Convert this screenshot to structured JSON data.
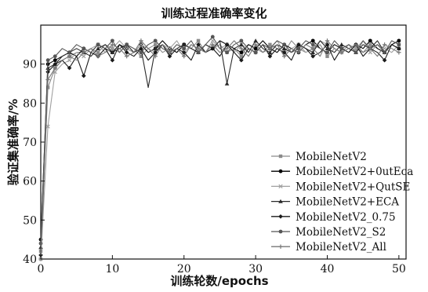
{
  "chart_data": {
    "type": "line",
    "title": "训练过程准确率变化",
    "xlabel": "训练轮数/epochs",
    "ylabel": "验证集准确率/%",
    "xlim": [
      0,
      51
    ],
    "ylim": [
      40,
      100
    ],
    "xticks": [
      0,
      10,
      20,
      30,
      40,
      50
    ],
    "yticks": [
      40,
      50,
      60,
      70,
      80,
      90
    ],
    "grid": false,
    "legend_position": "bottom-right",
    "series": [
      {
        "name": "MobileNetV2",
        "color": "#8a8a8a",
        "marker": "square",
        "x": [
          0,
          1,
          2,
          3,
          4,
          5,
          6,
          7,
          8,
          9,
          10,
          11,
          12,
          13,
          14,
          15,
          16,
          17,
          18,
          19,
          20,
          21,
          22,
          23,
          24,
          25,
          26,
          27,
          28,
          29,
          30,
          31,
          32,
          33,
          34,
          35,
          36,
          37,
          38,
          39,
          40,
          41,
          42,
          43,
          44,
          45,
          46,
          47,
          48,
          49,
          50
        ],
        "values": [
          42,
          84,
          89,
          91,
          92,
          93,
          93,
          94,
          93,
          95,
          94,
          93,
          95,
          94,
          92,
          94,
          95,
          93,
          94,
          93,
          95,
          94,
          96,
          93,
          94,
          95,
          93,
          94,
          92,
          95,
          94,
          93,
          95,
          94,
          93,
          96,
          94,
          93,
          94,
          95,
          92,
          94,
          93,
          95,
          94,
          93,
          95,
          94,
          93,
          95,
          94
        ]
      },
      {
        "name": "MobileNetV2+0utEca",
        "color": "#000000",
        "marker": "circle",
        "x": [
          0,
          1,
          2,
          3,
          4,
          5,
          6,
          7,
          8,
          9,
          10,
          11,
          12,
          13,
          14,
          15,
          16,
          17,
          18,
          19,
          20,
          21,
          22,
          23,
          24,
          25,
          26,
          27,
          28,
          29,
          30,
          31,
          32,
          33,
          34,
          35,
          36,
          37,
          38,
          39,
          40,
          41,
          42,
          43,
          44,
          45,
          46,
          47,
          48,
          49,
          50
        ],
        "values": [
          45,
          90,
          91,
          92,
          93,
          92,
          94,
          93,
          95,
          94,
          93,
          95,
          94,
          93,
          95,
          93,
          94,
          96,
          94,
          93,
          95,
          94,
          93,
          95,
          94,
          96,
          95,
          94,
          93,
          95,
          94,
          96,
          94,
          93,
          95,
          94,
          93,
          95,
          96,
          94,
          93,
          95,
          94,
          93,
          95,
          94,
          96,
          94,
          93,
          95,
          96
        ]
      },
      {
        "name": "MobileNetV2+QutSE",
        "color": "#a0a0a0",
        "marker": "cross",
        "x": [
          0,
          1,
          2,
          3,
          4,
          5,
          6,
          7,
          8,
          9,
          10,
          11,
          12,
          13,
          14,
          15,
          16,
          17,
          18,
          19,
          20,
          21,
          22,
          23,
          24,
          25,
          26,
          27,
          28,
          29,
          30,
          31,
          32,
          33,
          34,
          35,
          36,
          37,
          38,
          39,
          40,
          41,
          42,
          43,
          44,
          45,
          46,
          47,
          48,
          49,
          50
        ],
        "values": [
          40,
          74,
          88,
          90,
          91,
          93,
          92,
          94,
          95,
          93,
          94,
          96,
          94,
          93,
          95,
          94,
          93,
          95,
          94,
          96,
          93,
          95,
          94,
          93,
          96,
          94,
          95,
          93,
          95,
          94,
          93,
          95,
          94,
          96,
          93,
          94,
          95,
          93,
          94,
          96,
          95,
          94,
          93,
          95,
          94,
          96,
          93,
          95,
          94,
          93,
          95
        ]
      },
      {
        "name": "MobileNetV2+ECA",
        "color": "#2a2a2a",
        "marker": "triangle",
        "x": [
          0,
          1,
          2,
          3,
          4,
          5,
          6,
          7,
          8,
          9,
          10,
          11,
          12,
          13,
          14,
          15,
          16,
          17,
          18,
          19,
          20,
          21,
          22,
          23,
          24,
          25,
          26,
          27,
          28,
          29,
          30,
          31,
          32,
          33,
          34,
          35,
          36,
          37,
          38,
          39,
          40,
          41,
          42,
          43,
          44,
          45,
          46,
          47,
          48,
          49,
          50
        ],
        "values": [
          43,
          89,
          90,
          92,
          93,
          94,
          93,
          92,
          94,
          95,
          93,
          94,
          95,
          93,
          94,
          84,
          94,
          95,
          93,
          94,
          95,
          94,
          93,
          95,
          94,
          96,
          85,
          94,
          95,
          93,
          96,
          94,
          93,
          95,
          94,
          93,
          95,
          94,
          93,
          96,
          94,
          93,
          95,
          94,
          93,
          95,
          94,
          96,
          93,
          95,
          94
        ]
      },
      {
        "name": "MobileNetV2_0.75",
        "color": "#1a1a1a",
        "marker": "diamond",
        "x": [
          0,
          1,
          2,
          3,
          4,
          5,
          6,
          7,
          8,
          9,
          10,
          11,
          12,
          13,
          14,
          15,
          16,
          17,
          18,
          19,
          20,
          21,
          22,
          23,
          24,
          25,
          26,
          27,
          28,
          29,
          30,
          31,
          32,
          33,
          34,
          35,
          36,
          37,
          38,
          39,
          40,
          41,
          42,
          43,
          44,
          45,
          46,
          47,
          48,
          49,
          50
        ],
        "values": [
          41,
          88,
          90,
          91,
          89,
          92,
          87,
          93,
          92,
          94,
          91,
          95,
          93,
          92,
          94,
          91,
          93,
          95,
          92,
          94,
          93,
          91,
          95,
          93,
          94,
          92,
          95,
          93,
          91,
          94,
          93,
          95,
          92,
          94,
          93,
          91,
          95,
          94,
          92,
          93,
          95,
          91,
          94,
          93,
          95,
          92,
          94,
          93,
          91,
          95,
          94
        ]
      },
      {
        "name": "MobileNetV2_S2",
        "color": "#555555",
        "marker": "circle",
        "x": [
          0,
          1,
          2,
          3,
          4,
          5,
          6,
          7,
          8,
          9,
          10,
          11,
          12,
          13,
          14,
          15,
          16,
          17,
          18,
          19,
          20,
          21,
          22,
          23,
          24,
          25,
          26,
          27,
          28,
          29,
          30,
          31,
          32,
          33,
          34,
          35,
          36,
          37,
          38,
          39,
          40,
          41,
          42,
          43,
          44,
          45,
          46,
          47,
          48,
          49,
          50
        ],
        "values": [
          44,
          91,
          92,
          94,
          93,
          95,
          94,
          93,
          95,
          94,
          96,
          93,
          95,
          94,
          93,
          95,
          96,
          94,
          93,
          95,
          94,
          96,
          93,
          95,
          97,
          94,
          93,
          95,
          96,
          94,
          93,
          95,
          94,
          96,
          95,
          93,
          94,
          96,
          95,
          94,
          93,
          96,
          94,
          95,
          93,
          96,
          94,
          95,
          93,
          96,
          95
        ]
      },
      {
        "name": "MobileNetV2_All",
        "color": "#777777",
        "marker": "plus",
        "x": [
          0,
          1,
          2,
          3,
          4,
          5,
          6,
          7,
          8,
          9,
          10,
          11,
          12,
          13,
          14,
          15,
          16,
          17,
          18,
          19,
          20,
          21,
          22,
          23,
          24,
          25,
          26,
          27,
          28,
          29,
          30,
          31,
          32,
          33,
          34,
          35,
          36,
          37,
          38,
          39,
          40,
          41,
          42,
          43,
          44,
          45,
          46,
          47,
          48,
          49,
          50
        ],
        "values": [
          40,
          86,
          89,
          91,
          92,
          91,
          93,
          94,
          92,
          93,
          95,
          94,
          92,
          93,
          96,
          94,
          92,
          95,
          93,
          94,
          92,
          95,
          94,
          93,
          95,
          93,
          94,
          96,
          94,
          92,
          95,
          93,
          94,
          95,
          92,
          94,
          93,
          95,
          94,
          92,
          96,
          94,
          93,
          94,
          95,
          93,
          94,
          92,
          95,
          94,
          93
        ]
      }
    ]
  }
}
